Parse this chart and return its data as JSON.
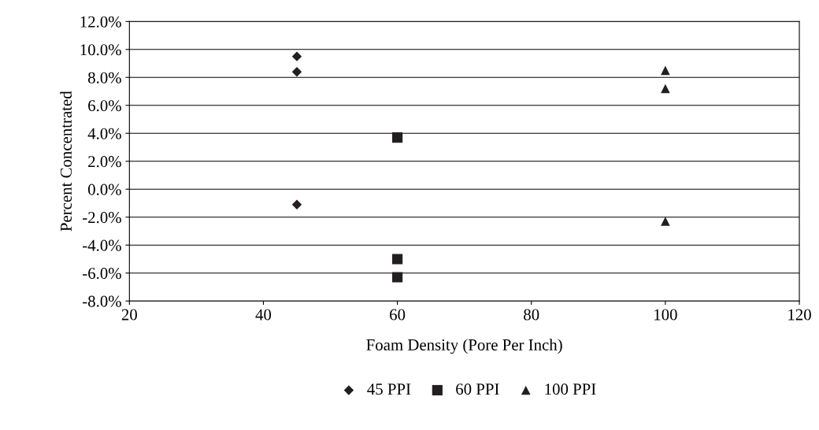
{
  "chart_data": {
    "type": "scatter",
    "xlabel": "Foam Density (Pore Per Inch)",
    "ylabel": "Percent Concentrated",
    "xlim": [
      20,
      120
    ],
    "xticks": [
      20,
      40,
      60,
      80,
      100,
      120
    ],
    "ylim": [
      -8,
      12
    ],
    "yticks": [
      {
        "value": -8,
        "label": "-8.0%"
      },
      {
        "value": -6,
        "label": "-6.0%"
      },
      {
        "value": -4,
        "label": "-4.0%"
      },
      {
        "value": -2,
        "label": "-2.0%"
      },
      {
        "value": 0,
        "label": "0.0%"
      },
      {
        "value": 2,
        "label": "2.0%"
      },
      {
        "value": 4,
        "label": "4.0%"
      },
      {
        "value": 6,
        "label": "6.0%"
      },
      {
        "value": 8,
        "label": "8.0%"
      },
      {
        "value": 10,
        "label": "10.0%"
      },
      {
        "value": 12,
        "label": "12.0%"
      }
    ],
    "grid": "y",
    "legend": "bottom",
    "series": [
      {
        "name": "45 PPI",
        "color": "#231f20",
        "marker": "diamond",
        "x": [
          45,
          45,
          45
        ],
        "values": [
          9.5,
          8.4,
          -1.1
        ]
      },
      {
        "name": "60 PPI",
        "color": "#231f20",
        "marker": "square",
        "x": [
          60,
          60,
          60
        ],
        "values": [
          3.7,
          -5.0,
          -6.3
        ]
      },
      {
        "name": "100 PPI",
        "color": "#231f20",
        "marker": "triangle",
        "x": [
          100,
          100,
          100
        ],
        "values": [
          8.5,
          7.2,
          -2.3
        ]
      }
    ]
  }
}
